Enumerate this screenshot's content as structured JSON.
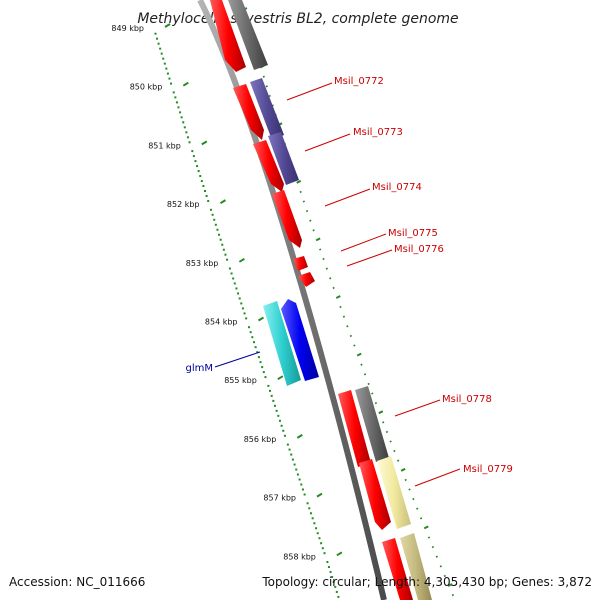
{
  "title": "Methylocella silvestris BL2, complete genome",
  "footer": {
    "accession": "Accession: NC_011666",
    "topology": "Topology: circular; Length: 4,305,430 bp; Genes: 3,872"
  },
  "scale": {
    "ticks": [
      "849 kbp",
      "850 kbp",
      "851 kbp",
      "852 kbp",
      "853 kbp",
      "854 kbp",
      "855 kbp",
      "856 kbp",
      "857 kbp",
      "858 kbp"
    ]
  },
  "gene_labels": [
    {
      "name": "Msil_0772",
      "color": "#cc0000"
    },
    {
      "name": "Msil_0773",
      "color": "#cc0000"
    },
    {
      "name": "Msil_0774",
      "color": "#cc0000"
    },
    {
      "name": "Msil_0775",
      "color": "#cc0000"
    },
    {
      "name": "Msil_0776",
      "color": "#cc0000"
    },
    {
      "name": "glmM",
      "color": "#000099"
    },
    {
      "name": "Msil_0778",
      "color": "#cc0000"
    },
    {
      "name": "Msil_0779",
      "color": "#cc0000"
    }
  ],
  "colors": {
    "backbone": "#808080",
    "cds": "#ff0000",
    "gene": "#666666",
    "cog_purple": "#5a4f99",
    "cog_blue": "#0000ff",
    "cog_cyan": "#22cccc",
    "cog_yellow": "#f0eaa0",
    "cog_khaki": "#c8bd80",
    "tick": "#228b22"
  }
}
